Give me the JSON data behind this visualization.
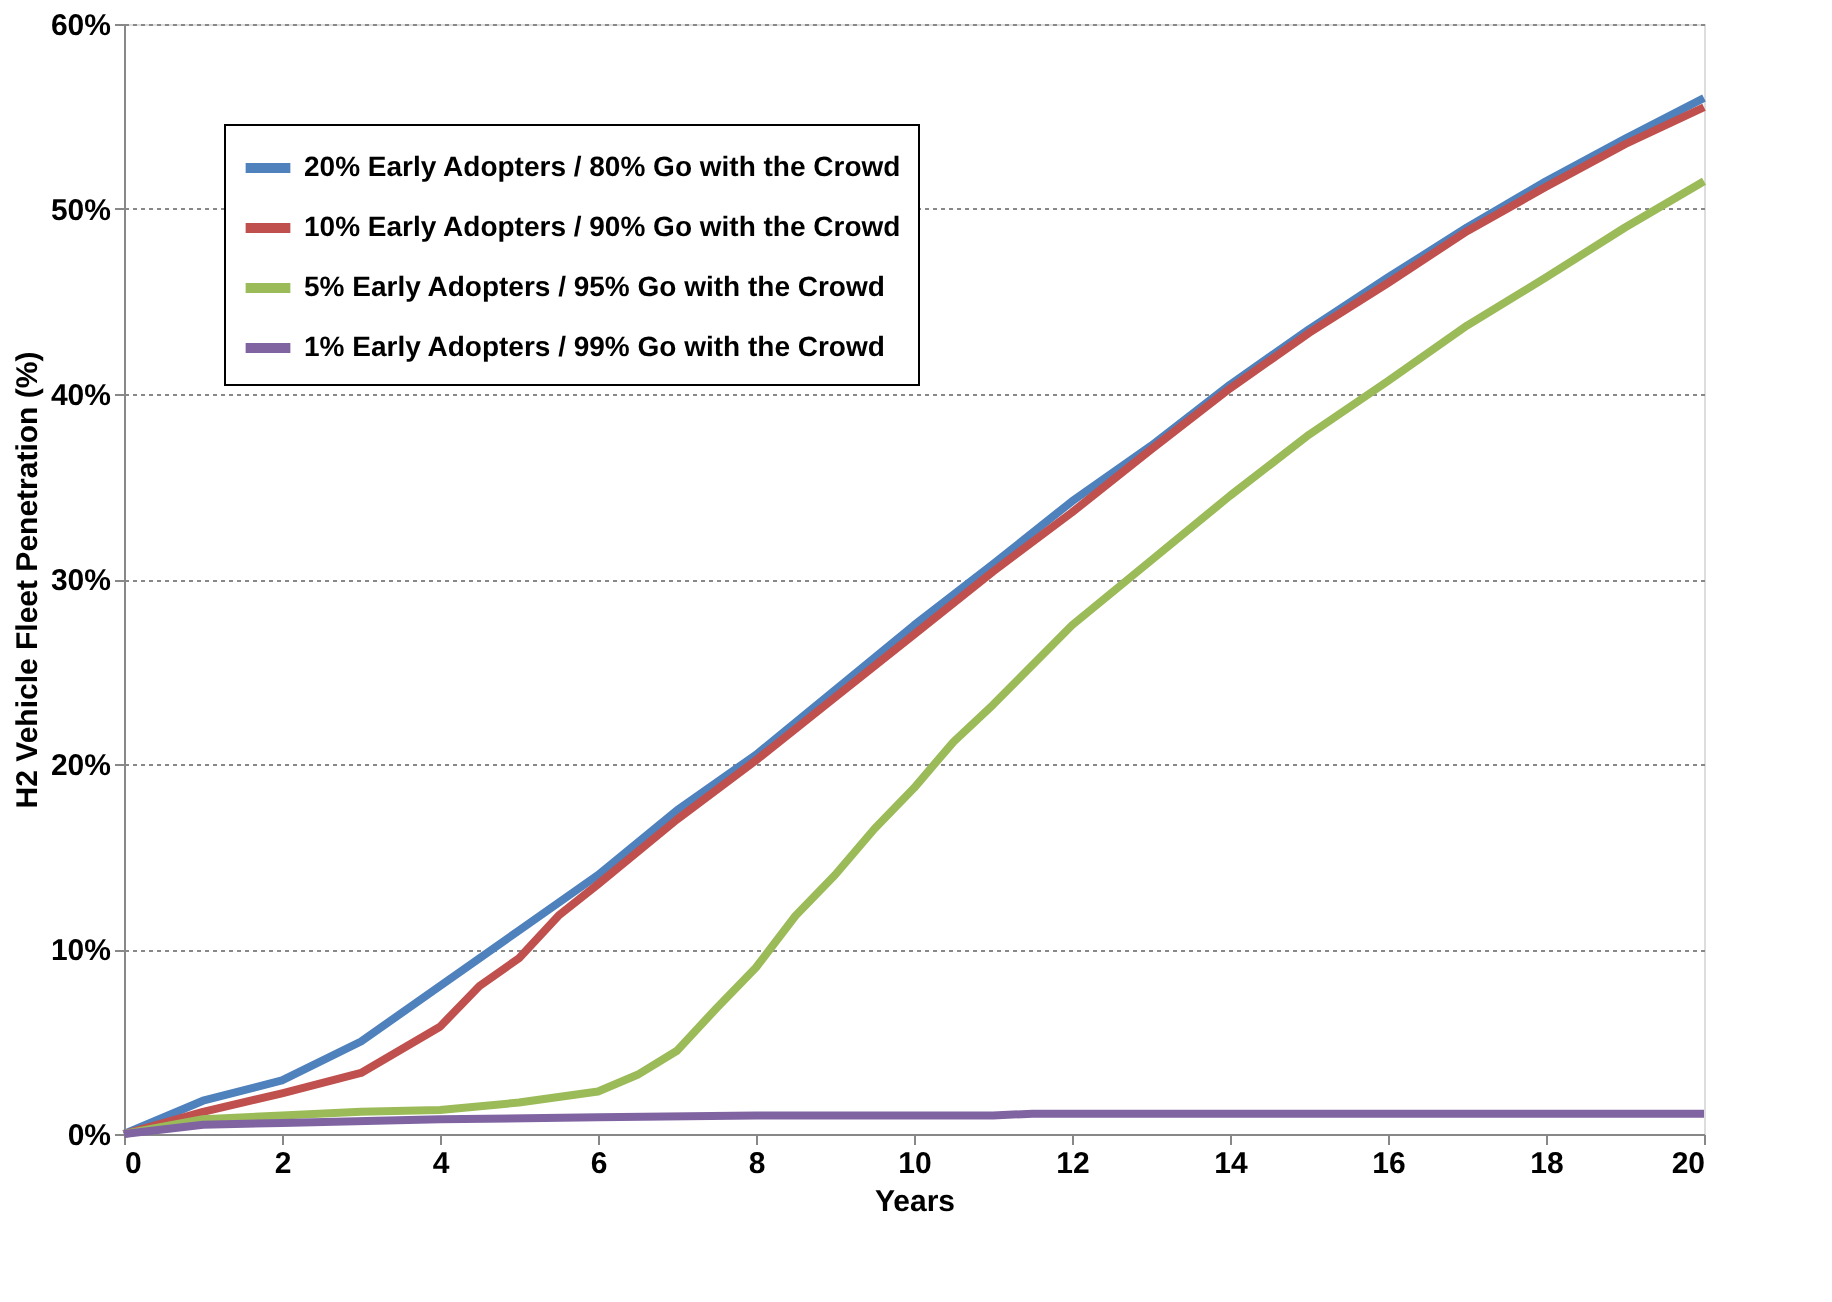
{
  "chart_data": {
    "type": "line",
    "xlabel": "Years",
    "ylabel": "H2 Vehicle Fleet Penetration (%)",
    "xlim": [
      0,
      20
    ],
    "xticks": [
      0,
      2,
      4,
      6,
      8,
      10,
      12,
      14,
      16,
      18,
      20
    ],
    "ylim": [
      0,
      60
    ],
    "yticks": [
      {
        "value": 0,
        "label": "0%"
      },
      {
        "value": 10,
        "label": "10%"
      },
      {
        "value": 20,
        "label": "20%"
      },
      {
        "value": 30,
        "label": "30%"
      },
      {
        "value": 40,
        "label": "40%"
      },
      {
        "value": 50,
        "label": "50%"
      },
      {
        "value": 60,
        "label": "60%"
      }
    ],
    "grid": "y",
    "legend": "top left",
    "marker": "none",
    "line_style": "solid",
    "series": [
      {
        "name": "20% Early Adopters / 80% Go with the Crowd",
        "color": "#4f81bd",
        "x": [
          0,
          1,
          2,
          3,
          4,
          5,
          6,
          7,
          8,
          9,
          10,
          11,
          12,
          13,
          14,
          15,
          16,
          17,
          18,
          19,
          20
        ],
        "values": [
          0,
          1.8,
          2.9,
          5,
          8,
          11,
          14,
          17.5,
          20.5,
          24,
          27.5,
          30.8,
          34.2,
          37.2,
          40.5,
          43.5,
          46.3,
          49,
          51.5,
          53.8,
          56
        ]
      },
      {
        "name": "10% Early Adopters / 90% Go with the Crowd",
        "color": "#c0504d",
        "x": [
          0,
          1,
          2,
          3,
          4,
          4.5,
          5,
          5.5,
          6,
          7,
          8,
          9,
          10,
          11,
          12,
          13,
          14,
          15,
          16,
          17,
          18,
          19,
          20
        ],
        "values": [
          0,
          1.2,
          2.2,
          3.3,
          5.8,
          8,
          9.5,
          11.8,
          13.5,
          17,
          20.2,
          23.6,
          27,
          30.4,
          33.6,
          37,
          40.3,
          43.3,
          46,
          48.8,
          51.2,
          53.5,
          55.5
        ]
      },
      {
        "name": "5% Early Adopters / 95% Go with the Crowd",
        "color": "#9bbb59",
        "x": [
          0,
          1,
          2,
          3,
          4,
          5,
          6,
          6.5,
          7,
          7.5,
          8,
          8.5,
          9,
          9.5,
          10,
          10.5,
          11,
          12,
          13,
          14,
          15,
          16,
          17,
          18,
          19,
          20
        ],
        "values": [
          0,
          0.8,
          1,
          1.2,
          1.3,
          1.7,
          2.3,
          3.2,
          4.5,
          6.8,
          9,
          11.8,
          14,
          16.5,
          18.7,
          21.2,
          23.2,
          27.5,
          31,
          34.5,
          37.8,
          40.7,
          43.7,
          46.3,
          49,
          51.5
        ]
      },
      {
        "name": "1% Early Adopters / 99% Go with the Crowd",
        "color": "#8064a2",
        "x": [
          0,
          1,
          2,
          4,
          6,
          8,
          11,
          11.5,
          20
        ],
        "values": [
          0,
          0.5,
          0.6,
          0.8,
          0.9,
          1,
          1,
          1.1,
          1.1
        ]
      }
    ]
  }
}
